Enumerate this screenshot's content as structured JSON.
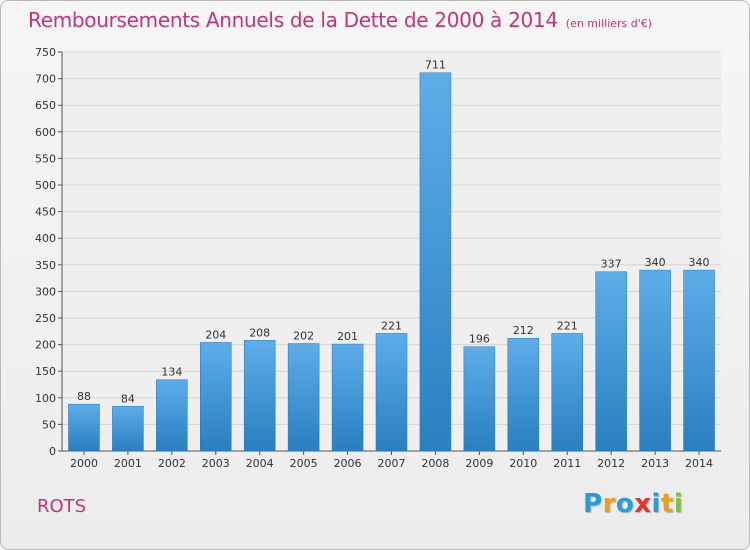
{
  "header": {
    "title": "Remboursements Annuels de la Dette de 2000 à 2014",
    "subtitle": "(en milliers d'€)"
  },
  "footer": {
    "commune": "ROTS",
    "logo_text": "Proxiti"
  },
  "colors": {
    "title": "#c8327a",
    "bar_top": "#5dade8",
    "bar_bottom": "#2a7fc0",
    "logo_letters": [
      "#2a9bd8",
      "#e8a020",
      "#2a9bd8",
      "#e83030",
      "#2a9bd8",
      "#e8a020",
      "#7cc242"
    ]
  },
  "chart_data": {
    "type": "bar",
    "title": "Remboursements Annuels de la Dette de 2000 à 2014",
    "subtitle": "(en milliers d'€)",
    "xlabel": "",
    "ylabel": "",
    "categories": [
      "2000",
      "2001",
      "2002",
      "2003",
      "2004",
      "2005",
      "2006",
      "2007",
      "2008",
      "2009",
      "2010",
      "2011",
      "2012",
      "2013",
      "2014"
    ],
    "values": [
      88,
      84,
      134,
      204,
      208,
      202,
      201,
      221,
      711,
      196,
      212,
      221,
      337,
      340,
      340
    ],
    "ylim": [
      0,
      750
    ],
    "yticks": [
      0,
      50,
      100,
      150,
      200,
      250,
      300,
      350,
      400,
      450,
      500,
      550,
      600,
      650,
      700,
      750
    ],
    "grid": true,
    "data_labels": true
  }
}
